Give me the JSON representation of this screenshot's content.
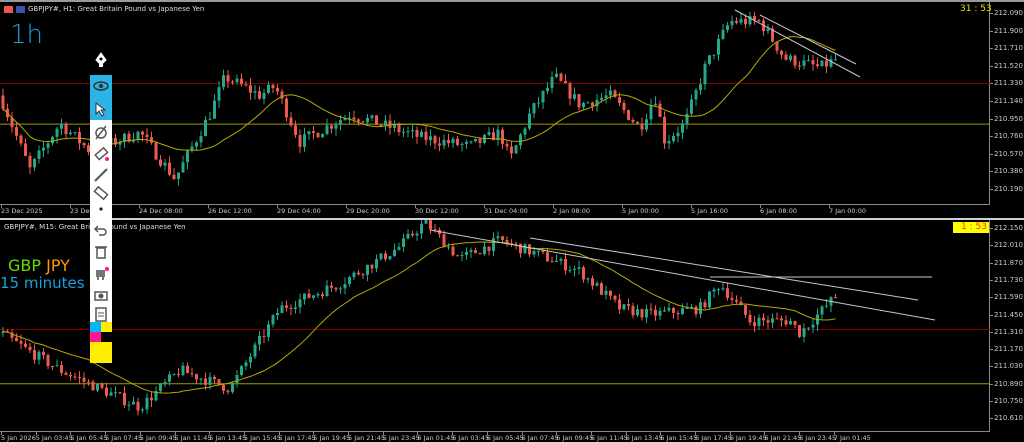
{
  "top": {
    "title": "GBPJPY#, H1:  Great Britain Pound vs Japanese Yen",
    "note": "1h",
    "clock": "31 : 53",
    "yticks": [
      "212.090",
      "211.900",
      "211.710",
      "211.520",
      "211.330",
      "211.140",
      "210.950",
      "210.760",
      "210.570",
      "210.380",
      "210.190"
    ],
    "xticks": [
      "23 Dec 2025",
      "23 Dec",
      "24 Dec 08:00",
      "26 Dec 12:00",
      "29 Dec 04:00",
      "29 Dec 20:00",
      "30 Dec 12:00",
      "31 Dec 04:00",
      "2 Jan 08:00",
      "5 Jan 00:00",
      "5 Jan 16:00",
      "6 Jan 08:00",
      "7 Jan 00:00"
    ],
    "hlines": {
      "red": 211.33,
      "yellow": 210.89
    }
  },
  "bottom": {
    "title": "GBPJPY#, M15:  Great Britain Pound vs Japanese Yen",
    "note_pair_a": "GBP",
    "note_pair_b": "JPY",
    "note_tf": "15 minutes",
    "clock": "1 : 53",
    "yticks": [
      "212.150",
      "212.010",
      "211.870",
      "211.730",
      "211.590",
      "211.450",
      "211.310",
      "211.170",
      "211.030",
      "210.890",
      "210.750",
      "210.610"
    ],
    "xticks": [
      "5 Jan 2026",
      "5 Jan 03:45",
      "5 Jan 05:45",
      "5 Jan 07:45",
      "5 Jan 09:45",
      "5 Jan 11:45",
      "5 Jan 13:45",
      "5 Jan 15:45",
      "5 Jan 17:45",
      "5 Jan 19:45",
      "5 Jan 21:45",
      "5 Jan 23:45",
      "6 Jan 01:45",
      "6 Jan 03:45",
      "6 Jan 05:45",
      "6 Jan 07:45",
      "6 Jan 09:45",
      "6 Jan 11:45",
      "6 Jan 13:45",
      "6 Jan 15:45",
      "6 Jan 17:45",
      "6 Jan 19:45",
      "6 Jan 21:45",
      "6 Jan 23:45",
      "7 Jan 01:45"
    ],
    "hlines": {
      "red": 211.33,
      "yellow": 210.89
    }
  },
  "colors": {
    "bull": "#22a88c",
    "bear": "#ef5a50",
    "ma": "#b8a800",
    "red_line": "#8b0000",
    "yellow_line": "#a09a00",
    "trend": "#c8c8c8",
    "toolbar_active": "#2bb3e6",
    "note_blue": "#1aa0e0",
    "note_green": "#66dd00",
    "note_orange": "#ff9900"
  },
  "toolbar": {
    "items": [
      "pen-icon",
      "eye-icon",
      "arrow-icon",
      "pen-crossed-icon",
      "eraser-icon",
      "line-icon",
      "ruler-icon",
      "dot-icon",
      "undo-icon",
      "trash-icon",
      "robot-icon",
      "camera-icon",
      "clipboard-icon",
      "palette-icon",
      "color-swatch-icon"
    ],
    "active": [
      "eye-icon",
      "arrow-icon"
    ]
  }
}
